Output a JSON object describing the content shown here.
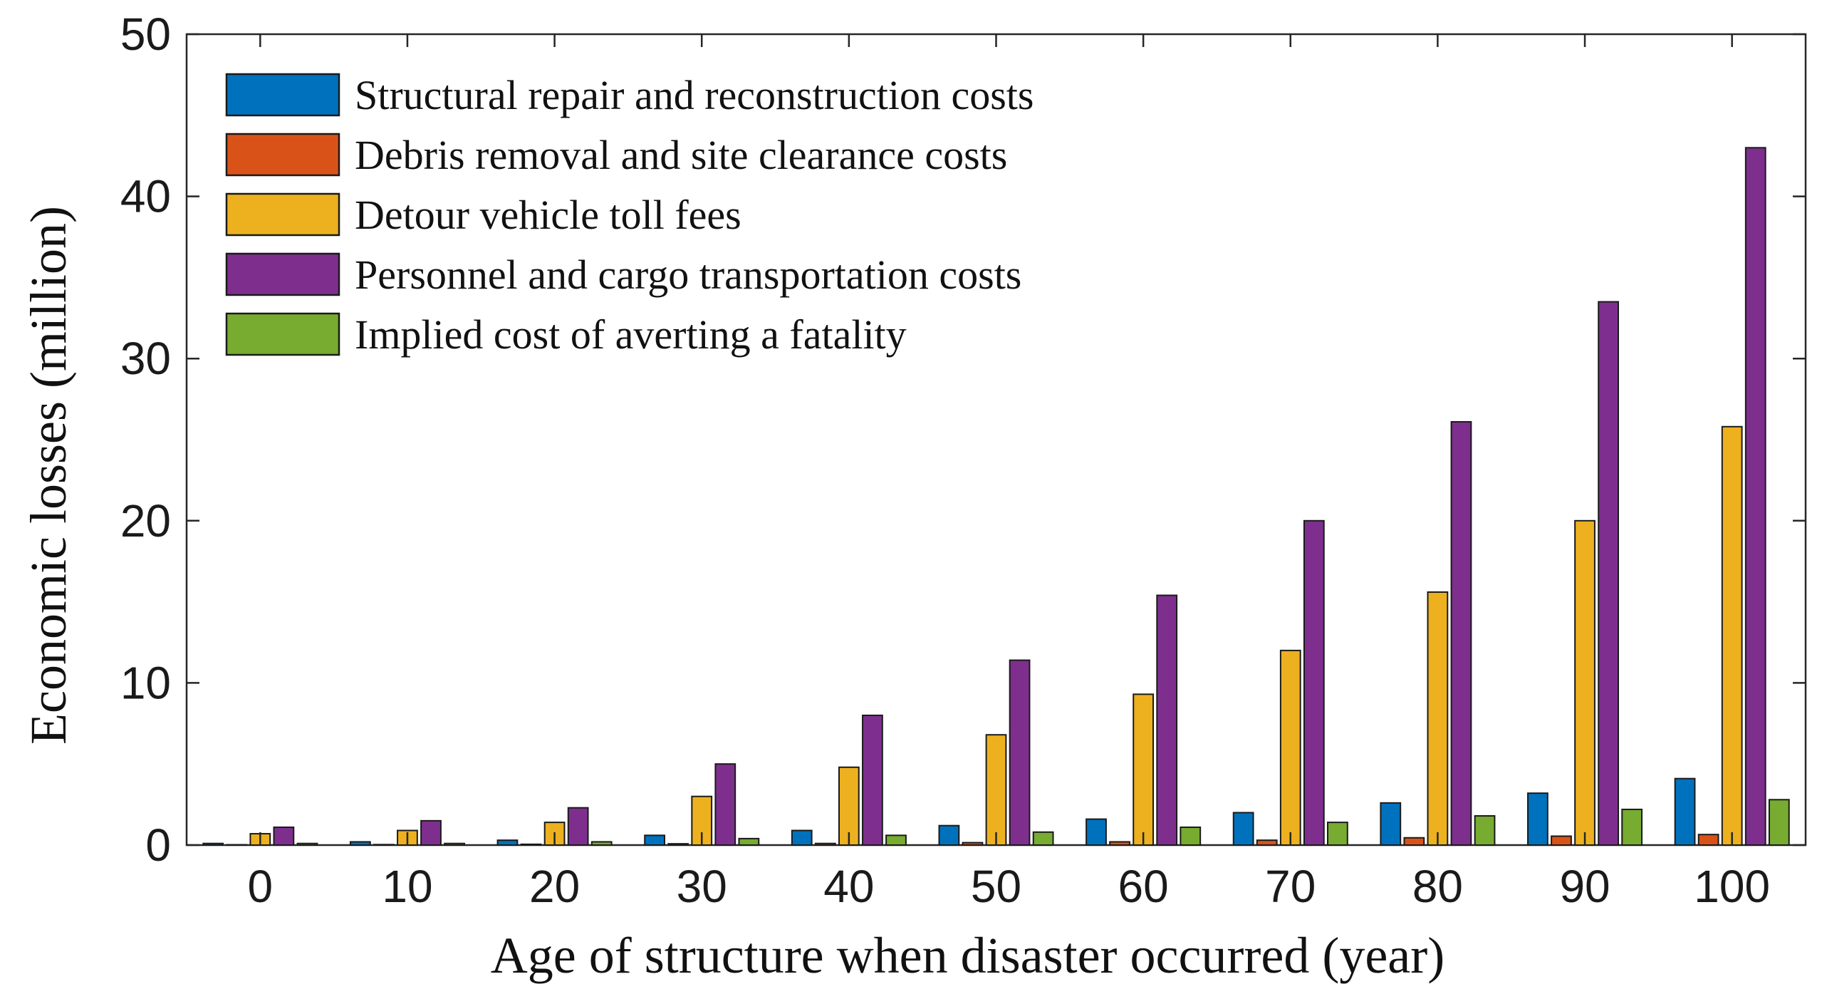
{
  "chart_data": {
    "type": "bar",
    "title": "",
    "xlabel": "Age of structure when disaster occurred (year)",
    "ylabel": "Economic losses (million)",
    "ylim": [
      0,
      50
    ],
    "yticks": [
      0,
      10,
      20,
      30,
      40,
      50
    ],
    "categories": [
      "0",
      "10",
      "20",
      "30",
      "40",
      "50",
      "60",
      "70",
      "80",
      "90",
      "100"
    ],
    "legend_position": "top-left",
    "grid": false,
    "series": [
      {
        "name": "Structural repair and reconstruction costs",
        "color": "#0072BD",
        "values": [
          0.1,
          0.2,
          0.3,
          0.6,
          0.9,
          1.2,
          1.6,
          2.0,
          2.6,
          3.2,
          4.1
        ]
      },
      {
        "name": "Debris removal and site clearance costs",
        "color": "#D95319",
        "values": [
          0.02,
          0.03,
          0.05,
          0.08,
          0.1,
          0.15,
          0.2,
          0.3,
          0.45,
          0.55,
          0.65
        ]
      },
      {
        "name": "Detour vehicle toll fees",
        "color": "#EDB120",
        "values": [
          0.7,
          0.9,
          1.4,
          3.0,
          4.8,
          6.8,
          9.3,
          12.0,
          15.6,
          20.0,
          25.8
        ]
      },
      {
        "name": "Personnel and cargo transportation costs",
        "color": "#7E2F8E",
        "values": [
          1.1,
          1.5,
          2.3,
          5.0,
          8.0,
          11.4,
          15.4,
          20.0,
          26.1,
          33.5,
          43.0
        ]
      },
      {
        "name": "Implied cost of averting a fatality",
        "color": "#77AC30",
        "values": [
          0.1,
          0.1,
          0.2,
          0.4,
          0.6,
          0.8,
          1.1,
          1.4,
          1.8,
          2.2,
          2.8
        ]
      }
    ]
  }
}
